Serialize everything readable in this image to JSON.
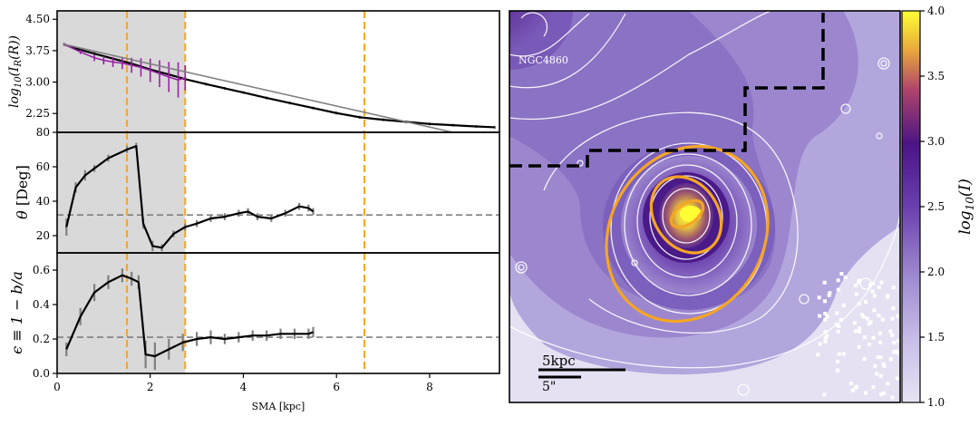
{
  "chart_data": [
    {
      "type": "line",
      "panel": "surface-brightness-profile",
      "ylabel": "log10(I_R(R))",
      "xlim": [
        0,
        9.5
      ],
      "ylim": [
        1.8,
        4.7
      ],
      "yticks": [
        "4.50",
        "3.75",
        "3.00",
        "2.25"
      ],
      "ytick_values": [
        4.5,
        3.75,
        3.0,
        2.25
      ],
      "grid": false,
      "shaded_region": [
        0,
        2.75
      ],
      "vlines": [
        1.5,
        2.75,
        6.6
      ],
      "series": [
        {
          "style": "black-solid-with-gray-errorbars",
          "x": [
            0.15,
            0.4,
            0.8,
            1.2,
            1.6,
            2.0,
            2.4,
            2.75,
            3.2,
            3.6,
            4.0,
            4.5,
            5.0,
            5.5,
            6.0,
            6.5,
            7.0,
            7.5,
            8.0,
            8.5,
            9.0,
            9.4
          ],
          "y": [
            3.9,
            3.8,
            3.68,
            3.56,
            3.44,
            3.3,
            3.18,
            3.07,
            2.95,
            2.85,
            2.75,
            2.62,
            2.5,
            2.38,
            2.26,
            2.16,
            2.1,
            2.05,
            2.0,
            1.97,
            1.94,
            1.92
          ]
        },
        {
          "style": "purple-with-errorbars",
          "x": [
            0.15,
            0.5,
            0.8,
            1.0,
            1.2,
            1.4,
            1.6,
            1.8,
            2.0,
            2.2,
            2.4,
            2.6,
            2.75
          ],
          "y": [
            3.9,
            3.72,
            3.58,
            3.52,
            3.48,
            3.45,
            3.4,
            3.35,
            3.28,
            3.2,
            3.12,
            3.05,
            3.1
          ],
          "err": [
            0.02,
            0.05,
            0.08,
            0.1,
            0.12,
            0.14,
            0.18,
            0.22,
            0.28,
            0.32,
            0.36,
            0.42,
            0.3
          ]
        },
        {
          "style": "gray-fit-line",
          "x": [
            0.15,
            8.5
          ],
          "y": [
            3.9,
            1.8
          ]
        }
      ]
    },
    {
      "type": "line",
      "panel": "position-angle-profile",
      "ylabel": "θ [Deg]",
      "xlim": [
        0,
        9.5
      ],
      "ylim": [
        10,
        80
      ],
      "yticks": [
        "80",
        "60",
        "40",
        "20"
      ],
      "ytick_values": [
        80,
        60,
        40,
        20
      ],
      "hline": 32,
      "shaded_region": [
        0,
        2.75
      ],
      "vlines": [
        1.5,
        2.75,
        6.6
      ],
      "series": [
        {
          "style": "black-solid-with-gray-errorbars",
          "x": [
            0.2,
            0.4,
            0.6,
            0.8,
            1.1,
            1.5,
            1.7,
            1.85,
            2.05,
            2.25,
            2.5,
            2.75,
            3.0,
            3.3,
            3.6,
            3.9,
            4.1,
            4.3,
            4.6,
            4.9,
            5.2,
            5.4,
            5.5
          ],
          "y": [
            25,
            48,
            55,
            59,
            65,
            70,
            72,
            27,
            14,
            13,
            21,
            25,
            27,
            30,
            31,
            33,
            34,
            31,
            30,
            33,
            37,
            36,
            34
          ],
          "err": [
            5,
            3,
            3,
            2,
            2,
            2,
            2,
            3,
            3,
            2,
            2,
            2,
            2,
            2,
            2,
            2,
            2,
            2,
            2,
            2,
            2,
            2,
            2
          ]
        }
      ]
    },
    {
      "type": "line",
      "panel": "ellipticity-profile",
      "ylabel": "ε ≡ 1 − b/a",
      "xlabel": "SMA [kpc]",
      "xlim": [
        0,
        9.5
      ],
      "ylim": [
        0,
        0.7
      ],
      "xticks": [
        "0",
        "2",
        "4",
        "6",
        "8"
      ],
      "xtick_values": [
        0,
        2,
        4,
        6,
        8
      ],
      "yticks": [
        "0.6",
        "0.4",
        "0.2",
        "0.0"
      ],
      "ytick_values": [
        0.6,
        0.4,
        0.2,
        0.0
      ],
      "hline": 0.21,
      "shaded_region": [
        0,
        2.75
      ],
      "vlines": [
        1.5,
        2.75,
        6.6
      ],
      "series": [
        {
          "style": "black-solid-with-gray-errorbars",
          "x": [
            0.2,
            0.5,
            0.8,
            1.1,
            1.4,
            1.6,
            1.75,
            1.9,
            2.1,
            2.4,
            2.7,
            3.0,
            3.3,
            3.6,
            3.9,
            4.2,
            4.5,
            4.8,
            5.1,
            5.4,
            5.5
          ],
          "y": [
            0.14,
            0.33,
            0.47,
            0.53,
            0.57,
            0.55,
            0.53,
            0.11,
            0.1,
            0.14,
            0.18,
            0.2,
            0.21,
            0.2,
            0.21,
            0.22,
            0.22,
            0.23,
            0.23,
            0.23,
            0.24
          ],
          "err": [
            0.04,
            0.05,
            0.05,
            0.04,
            0.04,
            0.04,
            0.04,
            0.08,
            0.08,
            0.06,
            0.05,
            0.04,
            0.04,
            0.03,
            0.03,
            0.03,
            0.03,
            0.03,
            0.03,
            0.03,
            0.03
          ]
        }
      ]
    },
    {
      "type": "heatmap",
      "panel": "galaxy-image",
      "annotation": "NGC4860",
      "scalebar_labels": [
        "5kpc",
        "5\""
      ],
      "colorbar": {
        "label": "log10(I)",
        "range": [
          1.0,
          4.0
        ],
        "ticks": [
          "4.0",
          "3.5",
          "3.0",
          "2.5",
          "2.0",
          "1.5",
          "1.0"
        ],
        "tick_values": [
          4.0,
          3.5,
          3.0,
          2.5,
          2.0,
          1.5,
          1.0
        ],
        "colors": [
          "#e8e4f4",
          "#c9bde8",
          "#9c87cf",
          "#6a3fae",
          "#4a1485",
          "#b0456b",
          "#e8a83c",
          "#ffff33"
        ]
      },
      "ellipse_color": "#f5a623",
      "contour_color": "#ffffff",
      "mask_boundary_style": "black-dashed"
    }
  ],
  "colors": {
    "black_line": "#000000",
    "errorbar": "#808080",
    "purple": "#9b1fa8",
    "fit": "#808080",
    "hline": "#808080",
    "vline": "#f5a623",
    "shade": "#d9d9d9"
  }
}
